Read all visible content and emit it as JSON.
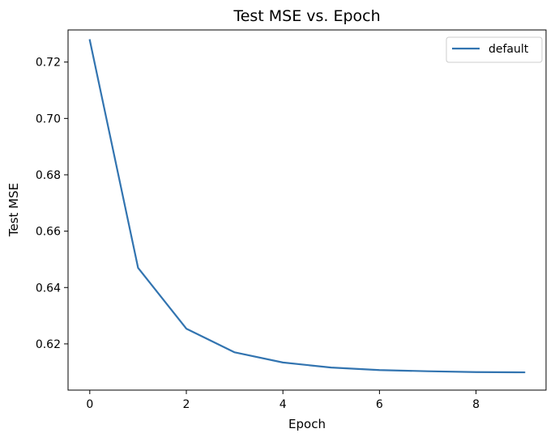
{
  "chart_data": {
    "type": "line",
    "title": "Test MSE vs. Epoch",
    "xlabel": "Epoch",
    "ylabel": "Test MSE",
    "xlim": [
      -0.45,
      9.45
    ],
    "ylim": [
      0.6036,
      0.7314
    ],
    "xticks": [
      0,
      2,
      4,
      6,
      8
    ],
    "xtick_labels": [
      "0",
      "2",
      "4",
      "6",
      "8"
    ],
    "yticks": [
      0.62,
      0.64,
      0.66,
      0.68,
      0.7,
      0.72
    ],
    "ytick_labels": [
      "0.62",
      "0.64",
      "0.66",
      "0.68",
      "0.70",
      "0.72"
    ],
    "grid": false,
    "legend": {
      "position": "upper right",
      "entries": [
        "default"
      ]
    },
    "x": [
      0,
      1,
      2,
      3,
      4,
      5,
      6,
      7,
      8,
      9
    ],
    "series": [
      {
        "name": "default",
        "color": "#3274b0",
        "values": [
          0.7278,
          0.647,
          0.6254,
          0.617,
          0.6134,
          0.6116,
          0.6107,
          0.6103,
          0.61,
          0.6099
        ]
      }
    ]
  }
}
